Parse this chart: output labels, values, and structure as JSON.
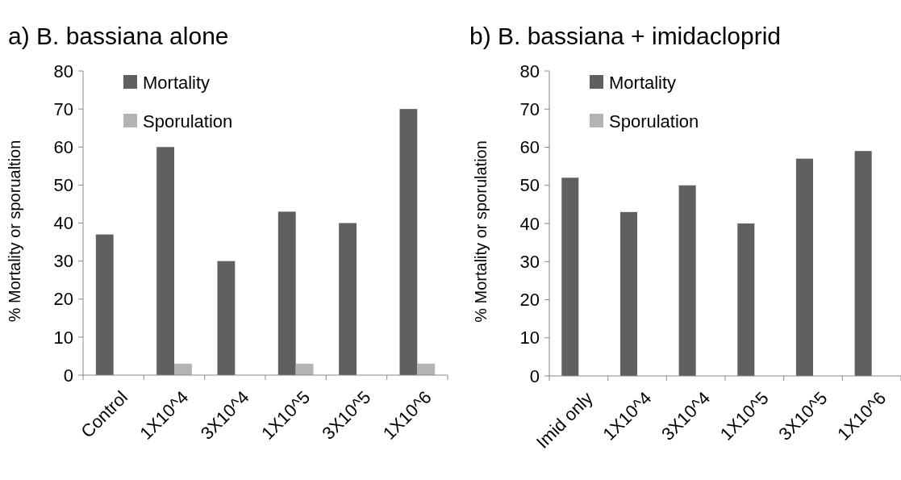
{
  "chart_data": [
    {
      "type": "bar",
      "title": "a) B. bassiana alone",
      "ylabel": "% Mortality or sporualtion",
      "categories": [
        "Control",
        "1X10^4",
        "3X10^4",
        "1X10^5",
        "3X10^5",
        "1X10^6"
      ],
      "series": [
        {
          "name": "Mortality",
          "color": "#606060",
          "values": [
            37,
            60,
            30,
            43,
            40,
            70
          ]
        },
        {
          "name": "Sporulation",
          "color": "#b3b3b3",
          "values": [
            0,
            3,
            0,
            3,
            0,
            3
          ]
        }
      ],
      "ylim": [
        0,
        80
      ],
      "yticks": [
        0,
        10,
        20,
        30,
        40,
        50,
        60,
        70,
        80
      ],
      "grid": false,
      "legend": "top left"
    },
    {
      "type": "bar",
      "title": "b) B. bassiana + imidacloprid",
      "ylabel": "% Mortality or sporulation",
      "categories": [
        "Imid only",
        "1X10^4",
        "3X10^4",
        "1X10^5",
        "3X10^5",
        "1X10^6"
      ],
      "series": [
        {
          "name": "Mortality",
          "color": "#606060",
          "values": [
            52,
            43,
            50,
            40,
            57,
            59
          ]
        },
        {
          "name": "Sporulation",
          "color": "#b3b3b3",
          "values": [
            0,
            0,
            0,
            0,
            0,
            0
          ]
        }
      ],
      "ylim": [
        0,
        80
      ],
      "yticks": [
        0,
        10,
        20,
        30,
        40,
        50,
        60,
        70,
        80
      ],
      "grid": false,
      "legend": "top left"
    }
  ]
}
